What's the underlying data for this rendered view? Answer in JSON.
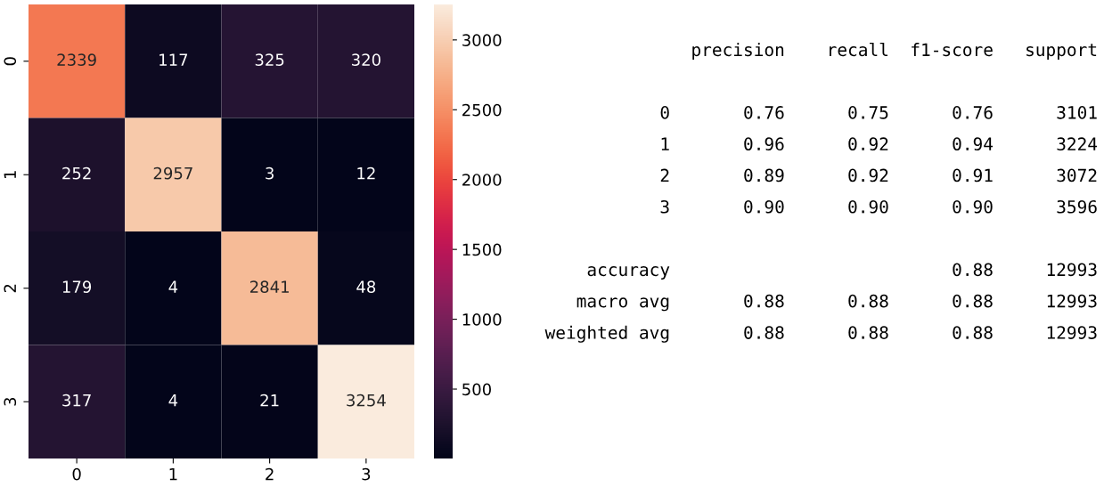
{
  "chart_data": [
    {
      "type": "heatmap",
      "categories": [
        "0",
        "1",
        "2",
        "3"
      ],
      "y_categories": [
        "0",
        "1",
        "2",
        "3"
      ],
      "cells": [
        [
          2339,
          117,
          325,
          320
        ],
        [
          252,
          2957,
          3,
          12
        ],
        [
          179,
          4,
          2841,
          48
        ],
        [
          317,
          4,
          21,
          3254
        ]
      ],
      "data_labels": true,
      "clim": [
        3,
        3254
      ],
      "cticks": [
        500,
        1000,
        1500,
        2000,
        2500,
        3000
      ],
      "grid": false
    },
    {
      "type": "other",
      "annotations": [
        "              precision    recall  f1-score   support\n\n           0       0.76      0.75      0.76      3101\n           1       0.96      0.92      0.94      3224\n           2       0.89      0.92      0.91      3072\n           3       0.90      0.90      0.90      3596\n\n    accuracy                           0.88     12993\n   macro avg       0.88      0.88      0.88     12993\nweighted avg       0.88      0.88      0.88     12993"
      ]
    }
  ]
}
